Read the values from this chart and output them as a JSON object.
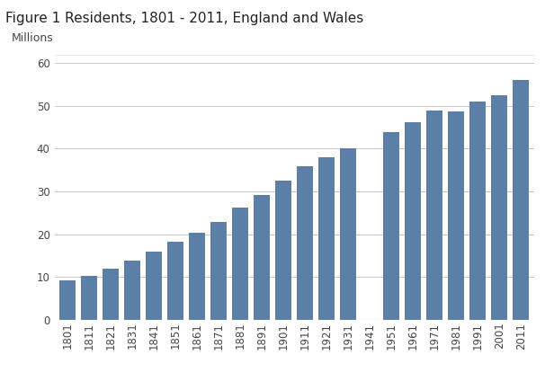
{
  "title": "Figure 1 Residents, 1801 - 2011, England and Wales",
  "ylabel": "Millions",
  "years": [
    1801,
    1811,
    1821,
    1831,
    1841,
    1851,
    1861,
    1871,
    1881,
    1891,
    1901,
    1911,
    1921,
    1931,
    1941,
    1951,
    1961,
    1971,
    1981,
    1991,
    2001,
    2011
  ],
  "values": [
    9.2,
    10.2,
    12.0,
    13.9,
    15.9,
    18.3,
    20.3,
    22.9,
    26.3,
    29.2,
    32.5,
    36.0,
    37.9,
    40.0,
    null,
    43.8,
    46.2,
    49.0,
    48.7,
    51.0,
    52.5,
    56.1
  ],
  "bar_color": "#5b7fa6",
  "background_color": "#ffffff",
  "ylim": [
    0,
    62
  ],
  "yticks": [
    0,
    10,
    20,
    30,
    40,
    50,
    60
  ],
  "grid_color": "#c8c8c8",
  "title_fontsize": 11,
  "ylabel_fontsize": 9,
  "tick_fontsize": 8.5,
  "bar_width": 0.75,
  "spine_color": "#999999",
  "title_color": "#222222",
  "tick_color": "#444444"
}
